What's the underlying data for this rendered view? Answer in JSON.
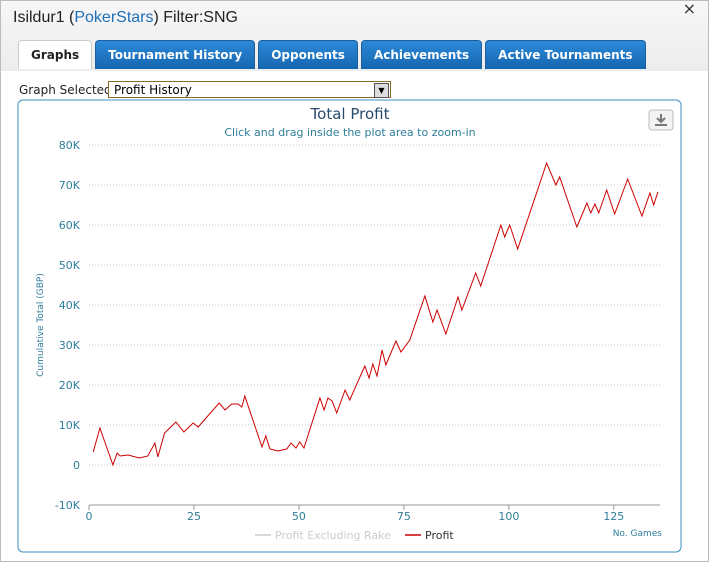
{
  "header": {
    "title_parts": [
      "Isildur1 (",
      "PokerStars",
      ") Filter:SNG"
    ],
    "close": "×"
  },
  "tabs": [
    "Graphs",
    "Tournament History",
    "Opponents",
    "Achievements",
    "Active Tournaments"
  ],
  "active_tab": 0,
  "selector": {
    "label": "Graph Selected:",
    "value": "Profit History"
  },
  "chart_data": {
    "type": "line",
    "title": "Total Profit",
    "subtitle": "Click and drag inside the plot area to zoom-in",
    "x_label": "No. Games",
    "y_label": "Cumulative Total (GBP)",
    "xlim": [
      0,
      136
    ],
    "xticks": [
      0,
      25,
      50,
      75,
      100,
      125
    ],
    "ylim": [
      -10000,
      80000
    ],
    "yticks": [
      {
        "value": -10000,
        "label": "-10K"
      },
      {
        "value": 0,
        "label": "0"
      },
      {
        "value": 10000,
        "label": "10K"
      },
      {
        "value": 20000,
        "label": "20K"
      },
      {
        "value": 30000,
        "label": "30K"
      },
      {
        "value": 40000,
        "label": "40K"
      },
      {
        "value": 50000,
        "label": "50K"
      },
      {
        "value": 60000,
        "label": "60K"
      },
      {
        "value": 70000,
        "label": "70K"
      },
      {
        "value": 80000,
        "label": "80K"
      }
    ],
    "grid": true,
    "x": [
      1,
      2.6,
      5.7,
      6.7,
      7.4,
      9.3,
      12,
      14,
      15.7,
      16.4,
      18,
      20.7,
      22.6,
      24.8,
      26,
      31,
      32.4,
      34,
      35.5,
      36.4,
      37.1,
      41.2,
      42.1,
      43.1,
      45,
      47.1,
      48.1,
      49.3,
      50.2,
      51.2,
      55,
      56,
      56.9,
      57.9,
      59,
      61,
      62.1,
      65.7,
      66.7,
      67.6,
      68.6,
      69.8,
      70.7,
      73.1,
      74.3,
      76.4,
      80,
      81.9,
      82.9,
      85,
      87.9,
      88.8,
      92.1,
      93.3,
      98.1,
      99,
      100.2,
      102.1,
      109,
      111.2,
      112.1,
      116.2,
      118.6,
      119.5,
      120.5,
      121.4,
      123.3,
      125.2,
      128.3,
      131.7,
      133.6,
      134.5,
      135.5
    ],
    "series": [
      {
        "name": "Profit Excluding Rake",
        "color": "#cccccc",
        "visible": false
      },
      {
        "name": "Profit",
        "color": "#cc0000",
        "visible": true,
        "values": [
          3250,
          9250,
          0,
          3000,
          2250,
          2500,
          1750,
          2250,
          5500,
          2000,
          8000,
          10750,
          8250,
          10500,
          9500,
          15500,
          13750,
          15250,
          15250,
          14500,
          17250,
          4500,
          7250,
          4000,
          3500,
          4000,
          5500,
          4250,
          5750,
          4250,
          16750,
          13750,
          16750,
          16000,
          13000,
          18750,
          16250,
          24750,
          21750,
          25250,
          22250,
          28750,
          25000,
          31000,
          28250,
          31250,
          42250,
          35750,
          38750,
          32750,
          42000,
          38750,
          48000,
          44750,
          60000,
          57000,
          60000,
          54000,
          75500,
          70000,
          72000,
          59500,
          65500,
          63000,
          65250,
          63000,
          68750,
          62750,
          71500,
          62250,
          68000,
          65000,
          68250
        ]
      }
    ]
  }
}
